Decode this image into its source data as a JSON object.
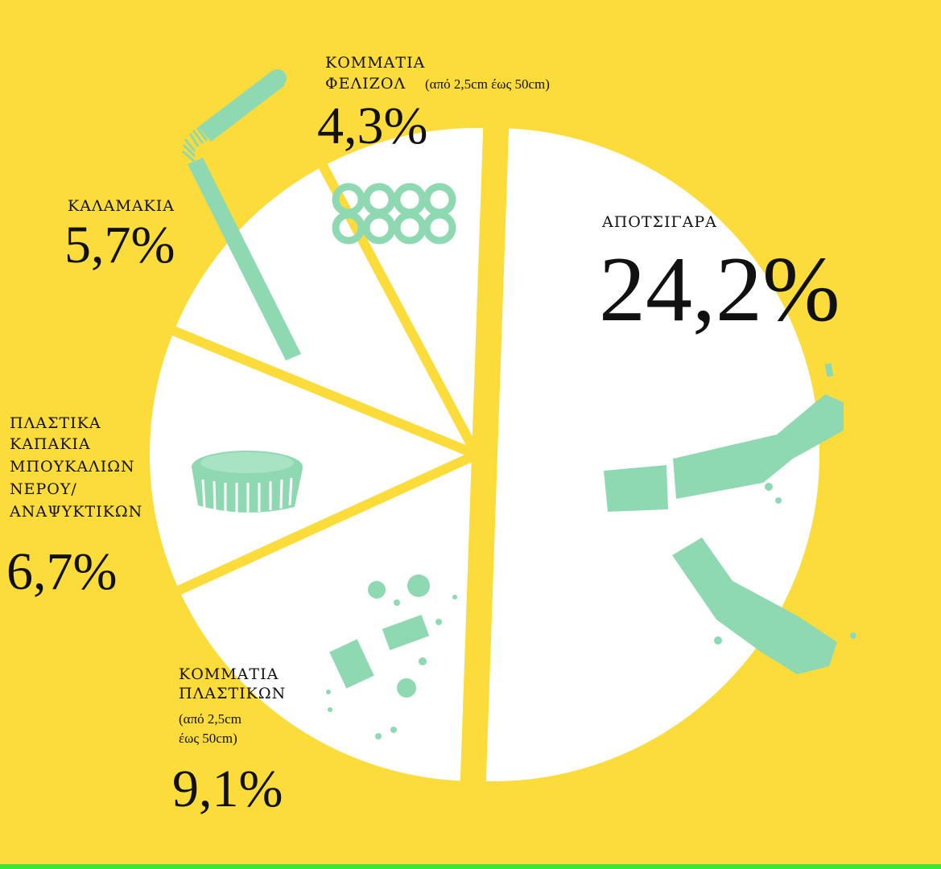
{
  "chart_data": {
    "type": "pie",
    "slices": [
      {
        "label": "ΑΠΟΤΣΙΓΑΡΑ",
        "display": "24,2%",
        "value": 24.2,
        "icon": "cigarette-butt-icon"
      },
      {
        "label": "ΚΟΜΜΑΤΙΑ ΠΛΑΣΤΙΚΩΝ",
        "note": "(από 2,5cm έως 50cm)",
        "display": "9,1%",
        "value": 9.1,
        "icon": "plastic-pieces-icon"
      },
      {
        "label": "ΠΛΑΣΤΙΚΑ ΚΑΠΑΚΙΑ ΜΠΟΥΚΑΛΙΩΝ ΝΕΡΟΥ/ ΑΝΑΨΥΚΤΙΚΩΝ",
        "display": "6,7%",
        "value": 6.7,
        "icon": "bottle-cap-icon"
      },
      {
        "label": "ΚΑΛΑΜΑΚΙΑ",
        "display": "5,7%",
        "value": 5.7,
        "icon": "drinking-straw-icon"
      },
      {
        "label": "ΚΟΜΜΑΤΙΑ ΦΕΛΙΖΟΛ",
        "note": "(από 2,5cm έως 50cm)",
        "display": "4,3%",
        "value": 4.3,
        "icon": "styrofoam-icon"
      }
    ],
    "colors": {
      "background": "#fcdc3a",
      "slice": "#ffffff",
      "separator": "#fcdc3a",
      "icon": "#8fd9b2",
      "text": "#111111"
    },
    "labels": {
      "cig_title": "ΑΠΟΤΣΙΓΑΡΑ",
      "cig_pct": "24,2%",
      "plastic_l1": "ΚΟΜΜΑΤΙΑ",
      "plastic_l2": "ΠΛΑΣΤΙΚΩΝ",
      "plastic_n1": "(από 2,5cm",
      "plastic_n2": "έως 50cm)",
      "plastic_pct": "9,1%",
      "caps_l1": "ΠΛΑΣΤΙΚΑ",
      "caps_l2": "ΚΑΠΑΚΙΑ",
      "caps_l3": "ΜΠΟΥΚΑΛΙΩΝ",
      "caps_l4": "ΝΕΡΟΥ/",
      "caps_l5": "ΑΝΑΨΥΚΤΙΚΩΝ",
      "caps_pct": "6,7%",
      "straw_l1": "ΚΑΛΑΜΑΚΙΑ",
      "straw_pct": "5,7%",
      "foam_l1": "ΚΟΜΜΑΤΙΑ",
      "foam_l2": "ΦΕΛΙΖΟΛ",
      "foam_note": "(από 2,5cm έως 50cm)",
      "foam_pct": "4,3%"
    }
  }
}
